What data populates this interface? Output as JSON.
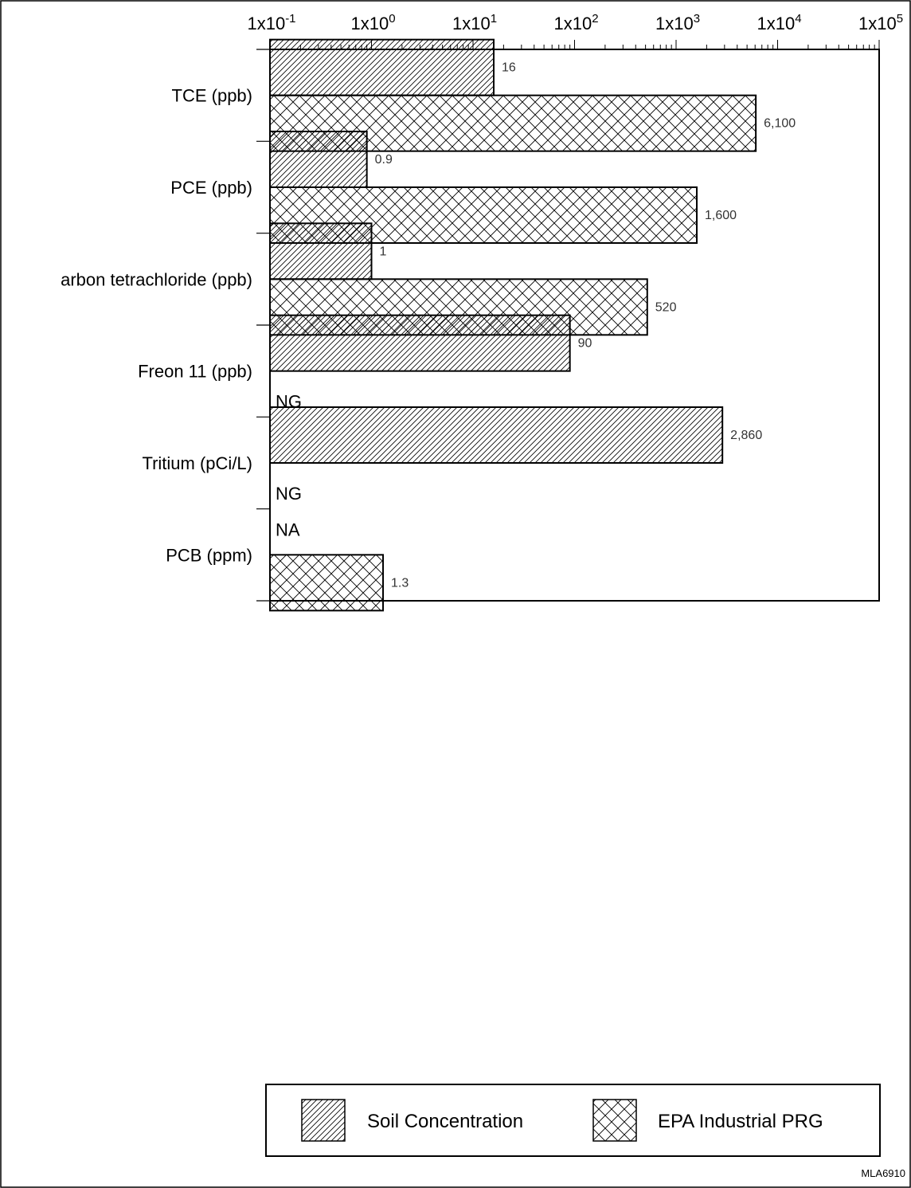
{
  "chart_data": {
    "type": "bar",
    "orientation": "horizontal",
    "x_scale": "log",
    "xlim": [
      0.1,
      100000
    ],
    "tick_labels": [
      {
        "base": "1x10",
        "exp": "-1",
        "value": 0.1
      },
      {
        "base": "1x10",
        "exp": "0",
        "value": 1
      },
      {
        "base": "1x10",
        "exp": "1",
        "value": 10
      },
      {
        "base": "1x10",
        "exp": "2",
        "value": 100
      },
      {
        "base": "1x10",
        "exp": "3",
        "value": 1000
      },
      {
        "base": "1x10",
        "exp": "4",
        "value": 10000
      },
      {
        "base": "1x10",
        "exp": "5",
        "value": 100000
      }
    ],
    "categories": [
      "TCE (ppb)",
      "PCE (ppb)",
      "arbon tetrachloride (ppb)",
      "Freon 11 (ppb)",
      "Tritium (pCi/L)",
      "PCB (ppm)"
    ],
    "series": [
      {
        "name": "Soil Concentration",
        "pattern": "diagonal-hatch",
        "values": [
          16,
          0.9,
          1,
          90,
          2860,
          null
        ],
        "labels": [
          "16",
          "0.9",
          "1",
          "90",
          "2,860",
          "NA"
        ]
      },
      {
        "name": "EPA Industrial PRG",
        "pattern": "crosshatch",
        "values": [
          6100,
          1600,
          520,
          null,
          null,
          1.3
        ],
        "labels": [
          "6,100",
          "1,600",
          "520",
          "NG",
          "NG",
          "1.3"
        ]
      }
    ],
    "legend_position": "bottom",
    "grid": false
  },
  "figure_code": "MLA6910"
}
